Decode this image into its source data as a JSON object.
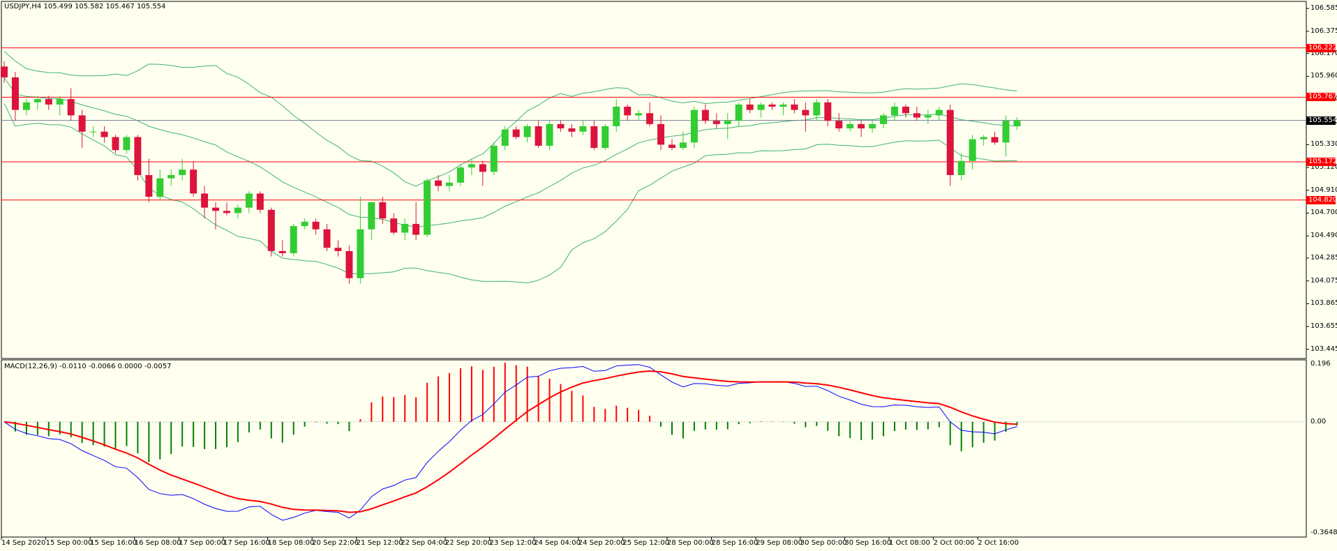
{
  "symbol_header": "USDJPY,H4  105.499 105.582 105.467 105.554",
  "macd_header": "MACD(12,26,9) -0.0110 -0.0066 0.0000 -0.0057",
  "colors": {
    "background": "#fffff0",
    "bull": "#32cd32",
    "bear": "#dc143c",
    "bands": "#3cb371",
    "levels": "#ff0000",
    "price_line": "#708090",
    "macd_line": "#0000ff",
    "signal_line": "#ff0000",
    "hist_pos": "#ff0000",
    "hist_neg": "#008000"
  },
  "chart_data": [
    {
      "type": "candlestick",
      "title": "USDJPY,H4",
      "ohlc_current": {
        "open": 105.499,
        "high": 105.582,
        "low": 105.467,
        "close": 105.554
      },
      "ylim": [
        103.36,
        106.65
      ],
      "y_ticks": [
        "106.585",
        "106.375",
        "106.170",
        "105.960",
        "105.750",
        "105.540",
        "105.330",
        "105.120",
        "104.910",
        "104.700",
        "104.490",
        "104.285",
        "104.075",
        "103.865",
        "103.655",
        "103.445"
      ],
      "x_ticks": [
        "14 Sep 2020",
        "15 Sep 00:00",
        "15 Sep 16:00",
        "16 Sep 08:00",
        "17 Sep 00:00",
        "17 Sep 16:00",
        "18 Sep 08:00",
        "20 Sep 22:06",
        "21 Sep 12:00",
        "22 Sep 04:00",
        "22 Sep 20:00",
        "23 Sep 12:00",
        "24 Sep 04:00",
        "24 Sep 20:00",
        "25 Sep 12:00",
        "28 Sep 00:00",
        "28 Sep 16:00",
        "29 Sep 08:00",
        "30 Sep 00:00",
        "30 Sep 16:00",
        "1 Oct 08:00",
        "2 Oct 00:00",
        "2 Oct 16:00"
      ],
      "current_price": "105.554",
      "horizontal_levels": [
        "106.222",
        "105.767",
        "105.172",
        "104.820"
      ],
      "candles": [
        [
          106.05,
          106.1,
          105.9,
          105.95
        ],
        [
          105.95,
          106.0,
          105.55,
          105.65
        ],
        [
          105.65,
          105.75,
          105.6,
          105.72
        ],
        [
          105.72,
          105.78,
          105.65,
          105.75
        ],
        [
          105.75,
          105.78,
          105.65,
          105.7
        ],
        [
          105.7,
          105.78,
          105.6,
          105.75
        ],
        [
          105.75,
          105.85,
          105.55,
          105.6
        ],
        [
          105.6,
          105.65,
          105.3,
          105.45
        ],
        [
          105.45,
          105.5,
          105.4,
          105.45
        ],
        [
          105.45,
          105.5,
          105.35,
          105.4
        ],
        [
          105.4,
          105.42,
          105.25,
          105.28
        ],
        [
          105.28,
          105.42,
          105.25,
          105.4
        ],
        [
          105.4,
          105.42,
          105.0,
          105.05
        ],
        [
          105.05,
          105.2,
          104.8,
          104.85
        ],
        [
          104.85,
          105.1,
          104.82,
          105.02
        ],
        [
          105.02,
          105.1,
          104.95,
          105.05
        ],
        [
          105.05,
          105.2,
          105.0,
          105.1
        ],
        [
          105.1,
          105.18,
          104.85,
          104.88
        ],
        [
          104.88,
          104.95,
          104.65,
          104.75
        ],
        [
          104.75,
          104.8,
          104.55,
          104.72
        ],
        [
          104.72,
          104.8,
          104.68,
          104.7
        ],
        [
          104.7,
          104.78,
          104.65,
          104.75
        ],
        [
          104.75,
          104.9,
          104.7,
          104.88
        ],
        [
          104.88,
          104.9,
          104.7,
          104.73
        ],
        [
          104.73,
          104.75,
          104.3,
          104.35
        ],
        [
          104.35,
          104.45,
          104.3,
          104.33
        ],
        [
          104.33,
          104.6,
          104.3,
          104.58
        ],
        [
          104.58,
          104.65,
          104.55,
          104.62
        ],
        [
          104.62,
          104.65,
          104.5,
          104.55
        ],
        [
          104.55,
          104.6,
          104.35,
          104.38
        ],
        [
          104.38,
          104.45,
          104.3,
          104.35
        ],
        [
          104.35,
          104.4,
          104.05,
          104.1
        ],
        [
          104.1,
          104.85,
          104.05,
          104.55
        ],
        [
          104.55,
          104.8,
          104.45,
          104.8
        ],
        [
          104.8,
          104.85,
          104.6,
          104.65
        ],
        [
          104.65,
          104.7,
          104.5,
          104.52
        ],
        [
          104.52,
          104.65,
          104.45,
          104.6
        ],
        [
          104.6,
          104.8,
          104.45,
          104.5
        ],
        [
          104.5,
          105.02,
          104.48,
          105.0
        ],
        [
          105.0,
          105.05,
          104.9,
          104.95
        ],
        [
          104.95,
          105.05,
          104.9,
          104.98
        ],
        [
          104.98,
          105.15,
          104.95,
          105.12
        ],
        [
          105.12,
          105.2,
          105.05,
          105.15
        ],
        [
          105.15,
          105.18,
          104.95,
          105.08
        ],
        [
          105.08,
          105.35,
          105.05,
          105.32
        ],
        [
          105.32,
          105.5,
          105.28,
          105.47
        ],
        [
          105.47,
          105.5,
          105.38,
          105.4
        ],
        [
          105.4,
          105.52,
          105.35,
          105.5
        ],
        [
          105.5,
          105.55,
          105.3,
          105.32
        ],
        [
          105.32,
          105.55,
          105.28,
          105.52
        ],
        [
          105.52,
          105.55,
          105.45,
          105.48
        ],
        [
          105.48,
          105.52,
          105.4,
          105.45
        ],
        [
          105.45,
          105.55,
          105.42,
          105.5
        ],
        [
          105.5,
          105.55,
          105.28,
          105.3
        ],
        [
          105.3,
          105.52,
          105.28,
          105.5
        ],
        [
          105.5,
          105.75,
          105.45,
          105.68
        ],
        [
          105.68,
          105.7,
          105.55,
          105.6
        ],
        [
          105.6,
          105.65,
          105.55,
          105.62
        ],
        [
          105.62,
          105.72,
          105.5,
          105.52
        ],
        [
          105.52,
          105.6,
          105.28,
          105.33
        ],
        [
          105.33,
          105.38,
          105.28,
          105.3
        ],
        [
          105.3,
          105.45,
          105.28,
          105.35
        ],
        [
          105.35,
          105.68,
          105.3,
          105.65
        ],
        [
          105.65,
          105.7,
          105.52,
          105.55
        ],
        [
          105.55,
          105.62,
          105.48,
          105.52
        ],
        [
          105.52,
          105.62,
          105.38,
          105.55
        ],
        [
          105.55,
          105.72,
          105.5,
          105.7
        ],
        [
          105.7,
          105.75,
          105.62,
          105.65
        ],
        [
          105.65,
          105.72,
          105.58,
          105.7
        ],
        [
          105.7,
          105.72,
          105.65,
          105.68
        ],
        [
          105.68,
          105.72,
          105.6,
          105.7
        ],
        [
          105.7,
          105.75,
          105.62,
          105.65
        ],
        [
          105.65,
          105.72,
          105.45,
          105.6
        ],
        [
          105.6,
          105.75,
          105.55,
          105.72
        ],
        [
          105.72,
          105.75,
          105.5,
          105.55
        ],
        [
          105.55,
          105.62,
          105.45,
          105.48
        ],
        [
          105.48,
          105.55,
          105.45,
          105.52
        ],
        [
          105.52,
          105.55,
          105.4,
          105.48
        ],
        [
          105.48,
          105.55,
          105.44,
          105.52
        ],
        [
          105.52,
          105.62,
          105.48,
          105.6
        ],
        [
          105.6,
          105.72,
          105.55,
          105.68
        ],
        [
          105.68,
          105.7,
          105.58,
          105.62
        ],
        [
          105.62,
          105.68,
          105.55,
          105.58
        ],
        [
          105.58,
          105.65,
          105.52,
          105.6
        ],
        [
          105.6,
          105.68,
          105.55,
          105.65
        ],
        [
          105.65,
          105.7,
          104.95,
          105.05
        ],
        [
          105.05,
          105.25,
          105.0,
          105.18
        ],
        [
          105.18,
          105.42,
          105.1,
          105.38
        ],
        [
          105.38,
          105.42,
          105.32,
          105.4
        ],
        [
          105.4,
          105.45,
          105.33,
          105.35
        ],
        [
          105.35,
          105.6,
          105.22,
          105.55
        ],
        [
          105.499,
          105.582,
          105.467,
          105.554
        ]
      ]
    },
    {
      "type": "bar",
      "title": "MACD(12,26,9)",
      "values": {
        "macd": -0.011,
        "signal": -0.0066,
        "v3": 0.0,
        "v4": -0.0057
      },
      "y_ticks": [
        "0.196",
        "0.00",
        "-0.3648"
      ],
      "ylim": [
        -0.3648,
        0.196
      ]
    }
  ]
}
